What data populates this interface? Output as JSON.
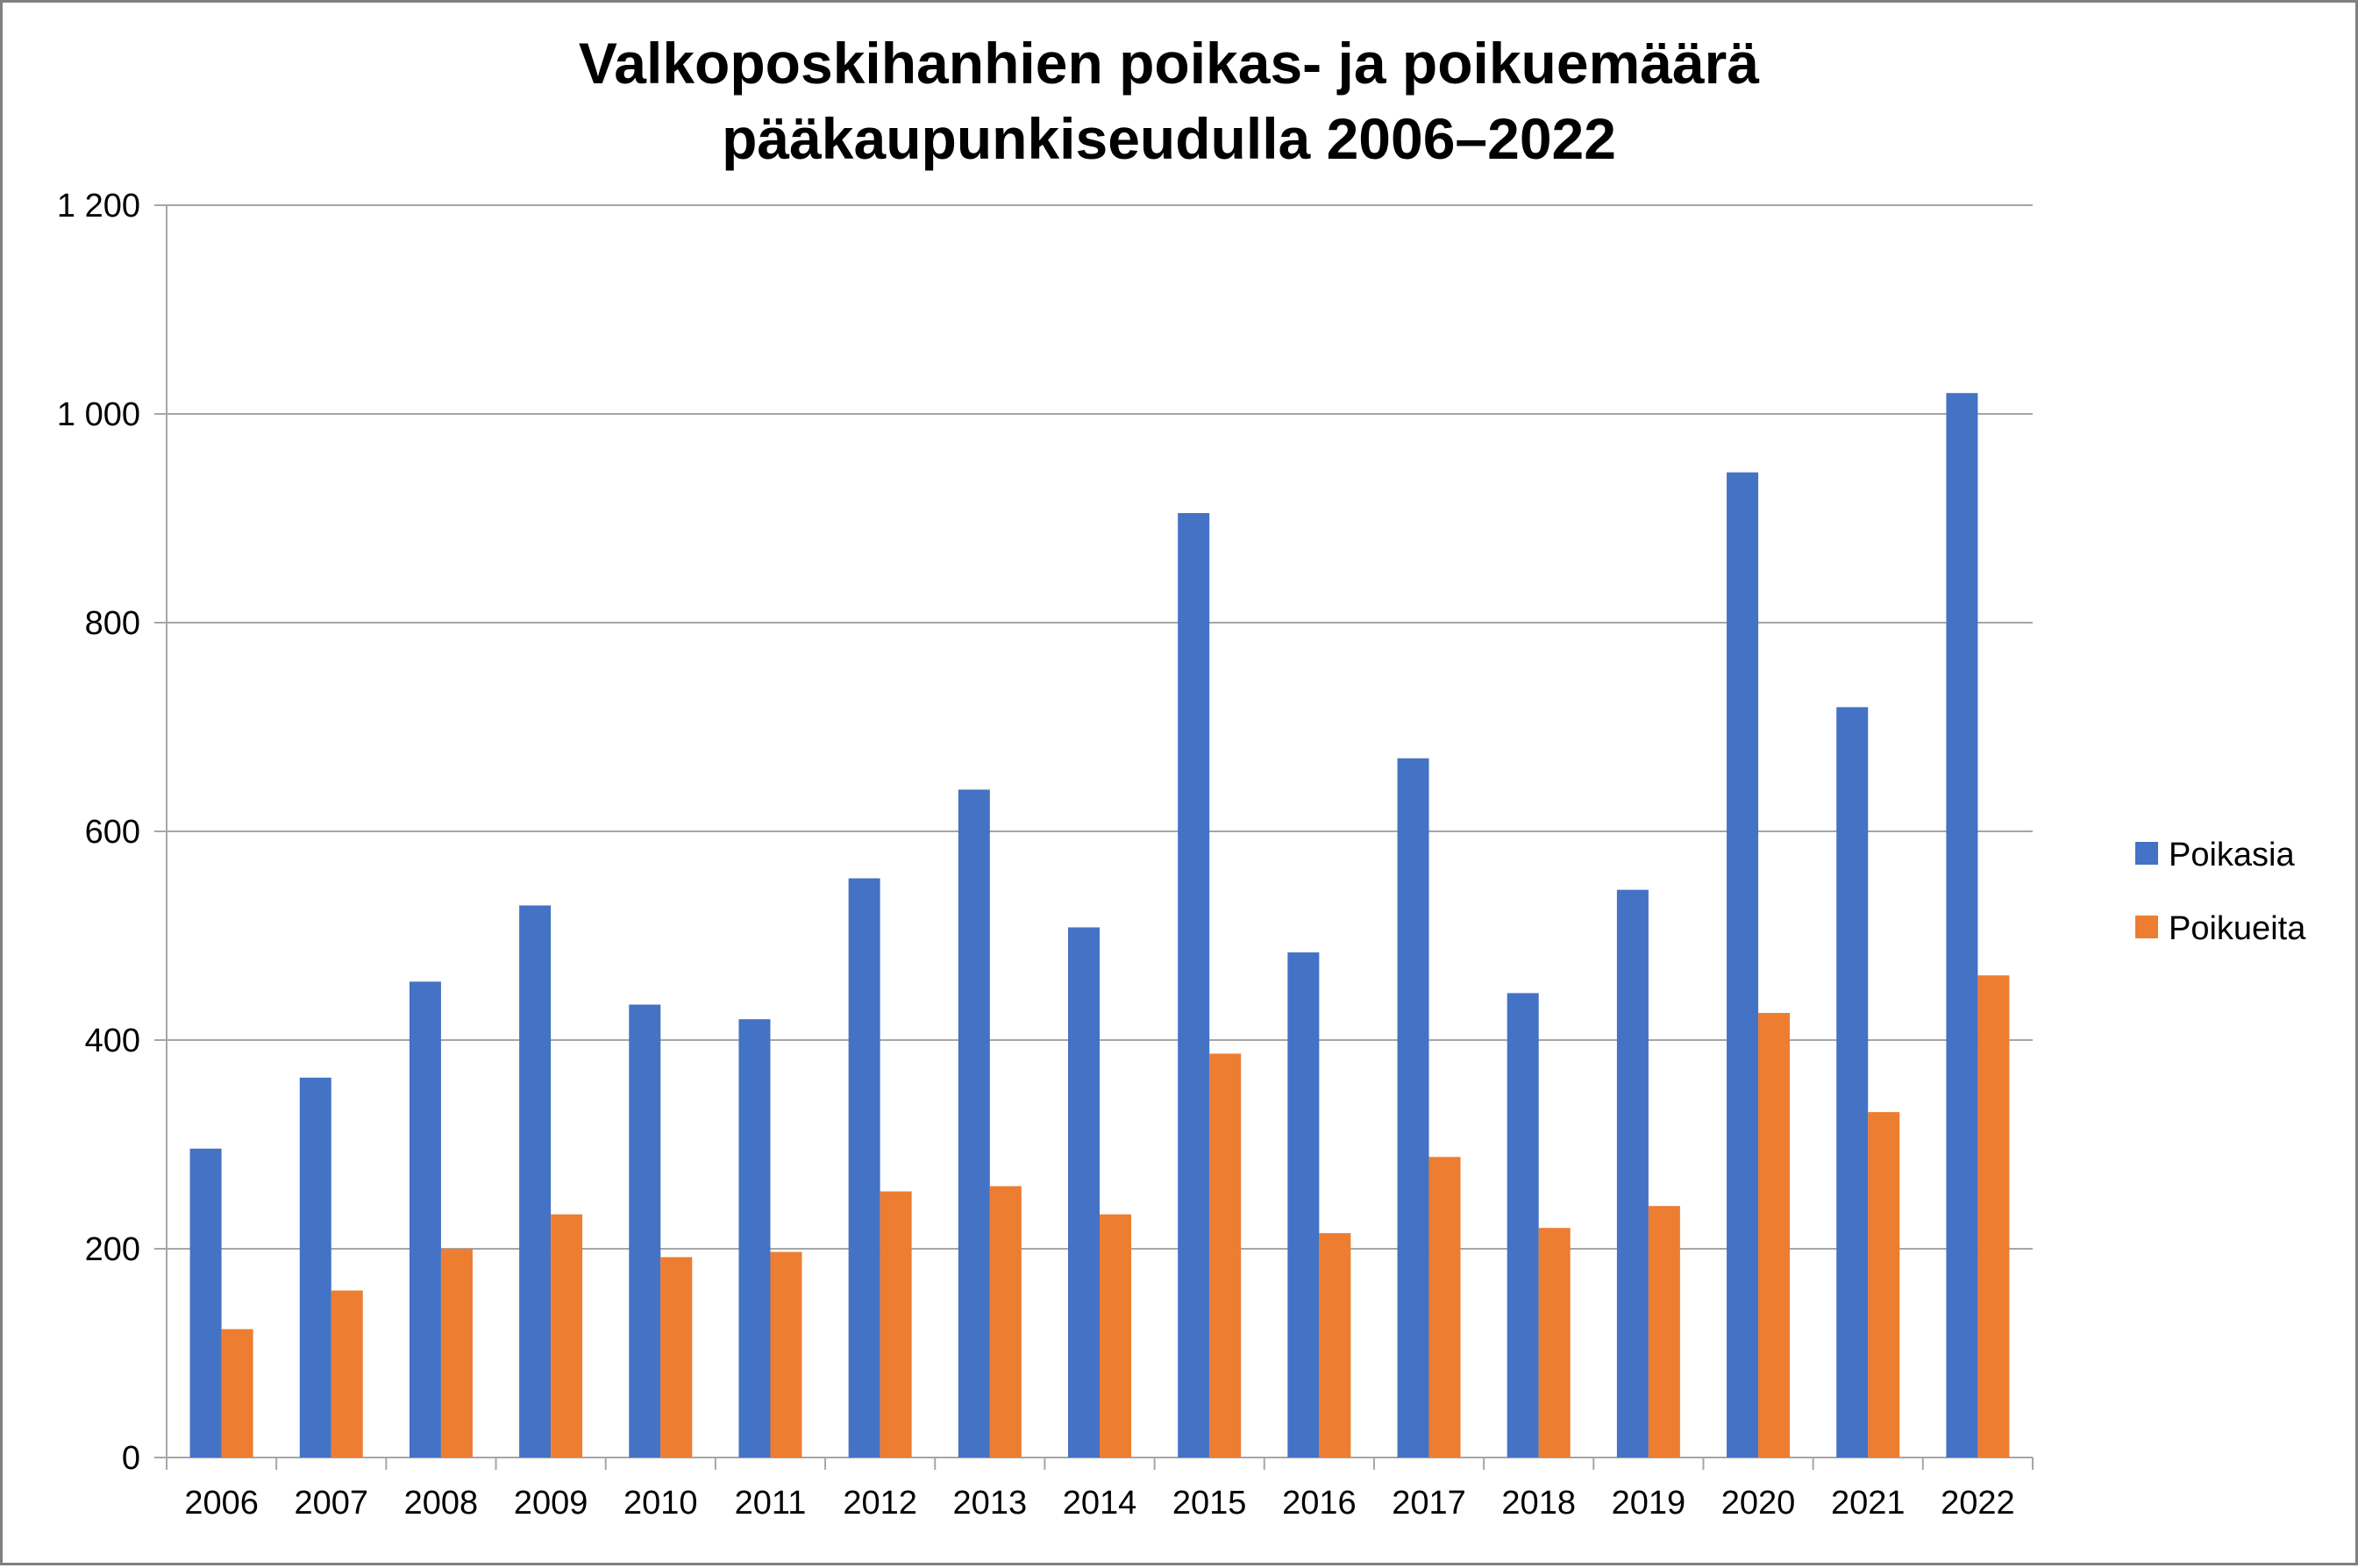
{
  "chart_data": {
    "type": "bar",
    "title": "Valkoposkihanhien poikas- ja poikuemäärä pääkaupunkiseudulla 2006–2022",
    "title_lines": [
      "Valkoposkihanhien poikas- ja poikuemäärä",
      "pääkaupunkiseudulla 2006–2022"
    ],
    "xlabel": "",
    "ylabel": "",
    "categories": [
      "2006",
      "2007",
      "2008",
      "2009",
      "2010",
      "2011",
      "2012",
      "2013",
      "2014",
      "2015",
      "2016",
      "2017",
      "2018",
      "2019",
      "2020",
      "2021",
      "2022"
    ],
    "series": [
      {
        "name": "Poikasia",
        "color": "#4472c4",
        "values": [
          296,
          364,
          456,
          529,
          434,
          420,
          555,
          640,
          508,
          905,
          484,
          670,
          445,
          544,
          944,
          719,
          1020
        ]
      },
      {
        "name": "Poikueita",
        "color": "#ed7d31",
        "values": [
          123,
          160,
          200,
          233,
          192,
          197,
          255,
          260,
          233,
          387,
          215,
          288,
          220,
          241,
          426,
          331,
          462
        ]
      }
    ],
    "ylim": [
      0,
      1200
    ],
    "y_ticks": [
      0,
      200,
      400,
      600,
      800,
      1000,
      1200
    ],
    "y_tick_labels": [
      "0",
      "200",
      "400",
      "600",
      "800",
      "1 000",
      "1 200"
    ],
    "grid": true,
    "legend_position": "right"
  }
}
